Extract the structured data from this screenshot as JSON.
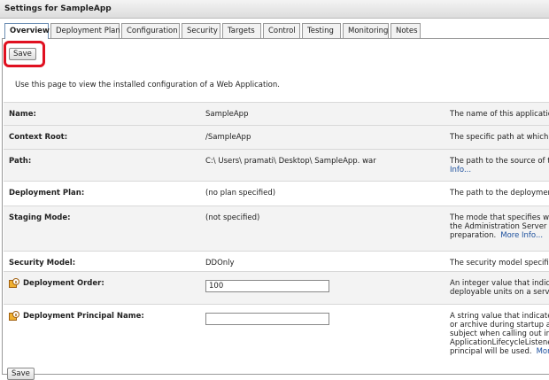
{
  "header": {
    "title": "Settings for SampleApp"
  },
  "tabs": [
    "Overview",
    "Deployment Plan",
    "Configuration",
    "Security",
    "Targets",
    "Control",
    "Testing",
    "Monitoring",
    "Notes"
  ],
  "active_tab": 0,
  "save_button": "Save",
  "intro": "Use this page to view the installed configuration of a Web Application.",
  "rows": [
    {
      "label": "Name:",
      "value": "SampleApp",
      "description": [
        {
          "text": "The name of this application"
        }
      ]
    },
    {
      "label": "Context Root:",
      "value": "/SampleApp",
      "description": [
        {
          "text": "The specific path at which thi"
        }
      ]
    },
    {
      "label": "Path:",
      "value": "C:\\ Users\\ pramati\\ Desktop\\ SampleApp. war",
      "description": [
        {
          "text": "The path to the source of the"
        },
        {
          "link": "Info..."
        }
      ]
    },
    {
      "label": "Deployment Plan:",
      "value": "(no plan specified)",
      "description": [
        {
          "text": "The path to the deployment p"
        }
      ]
    },
    {
      "label": "Staging Mode:",
      "value": "(not specified)",
      "description": [
        {
          "text": "The mode that specifies whet"
        },
        {
          "text": "the Administration Server to t"
        },
        {
          "text": "preparation.",
          "link": "More Info..."
        }
      ]
    },
    {
      "label": "Security Model:",
      "value": "DDOnly",
      "description": [
        {
          "text": "The security model specifies"
        }
      ]
    },
    {
      "label": "Deployment Order:",
      "icon": true,
      "input": "100",
      "description": [
        {
          "text": "An integer value that indicate"
        },
        {
          "text": "deployable units on a server,"
        }
      ]
    },
    {
      "label": "Deployment Principal Name:",
      "icon": true,
      "input": "",
      "description": [
        {
          "text": "A string value that indicates w"
        },
        {
          "text": "or archive during startup and"
        },
        {
          "text": "subject when calling out into"
        },
        {
          "text": "ApplicationLifecycleListener. I"
        },
        {
          "text": "principal will be used.",
          "link": "More"
        }
      ]
    }
  ],
  "bottom_button": "Save"
}
